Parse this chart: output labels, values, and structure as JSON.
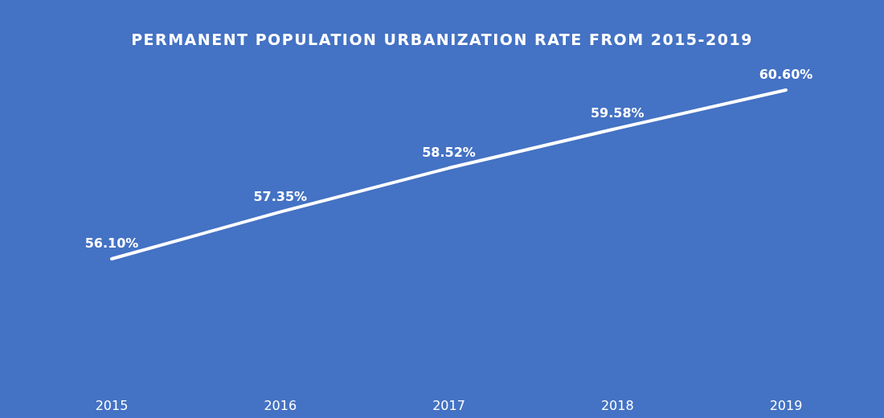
{
  "chart_data": {
    "type": "line",
    "title": "PERMANENT POPULATION URBANIZATION RATE FROM 2015-2019",
    "categories": [
      "2015",
      "2016",
      "2017",
      "2018",
      "2019"
    ],
    "series": [
      {
        "color": "#ffffff",
        "values": [
          56.1,
          57.35,
          58.52,
          59.58,
          60.6
        ],
        "value_labels": [
          "56.10%",
          "57.35%",
          "58.52%",
          "59.58%",
          "60.60%"
        ]
      }
    ],
    "line_style": "solid"
  }
}
